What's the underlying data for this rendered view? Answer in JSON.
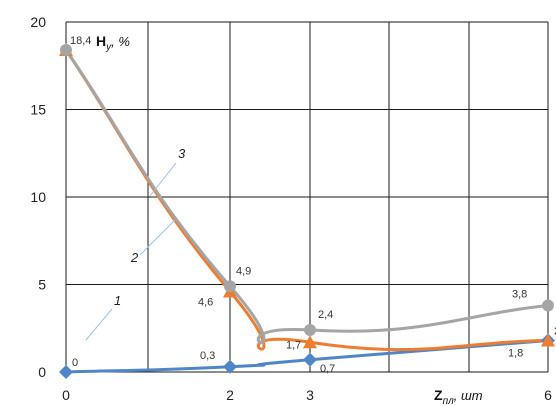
{
  "chart_data": {
    "type": "line",
    "ylabel_main": "H",
    "ylabel_sub": "у",
    "ylabel_unit": ", %",
    "xlabel_main": "Z",
    "xlabel_sub": "пл",
    "xlabel_unit": ", шт",
    "x_ticks": [
      "0",
      "2",
      "3",
      "6"
    ],
    "y_ticks": [
      "0",
      "5",
      "10",
      "15",
      "20"
    ],
    "ylim": [
      0,
      20
    ],
    "grid": true,
    "series": [
      {
        "name": "1",
        "color": "#4f86c6",
        "marker": "diamond",
        "x": [
          0,
          2,
          3,
          6
        ],
        "y": [
          0,
          0.3,
          0.7,
          1.8
        ],
        "labels": [
          "0",
          "0,3",
          "0,7",
          "1,8"
        ]
      },
      {
        "name": "2",
        "color": "#ed7d31",
        "marker": "triangle",
        "x": [
          0,
          2,
          3,
          6
        ],
        "y": [
          18.4,
          4.6,
          1.7,
          1.8
        ],
        "labels": [
          "",
          "4,6",
          "1,7",
          "2"
        ]
      },
      {
        "name": "3",
        "color": "#a5a5a5",
        "marker": "circle",
        "x": [
          0,
          2,
          3,
          6
        ],
        "y": [
          18.4,
          4.9,
          2.4,
          3.8
        ],
        "labels": [
          "18,4",
          "4,9",
          "2,4",
          "3,8"
        ]
      }
    ]
  }
}
